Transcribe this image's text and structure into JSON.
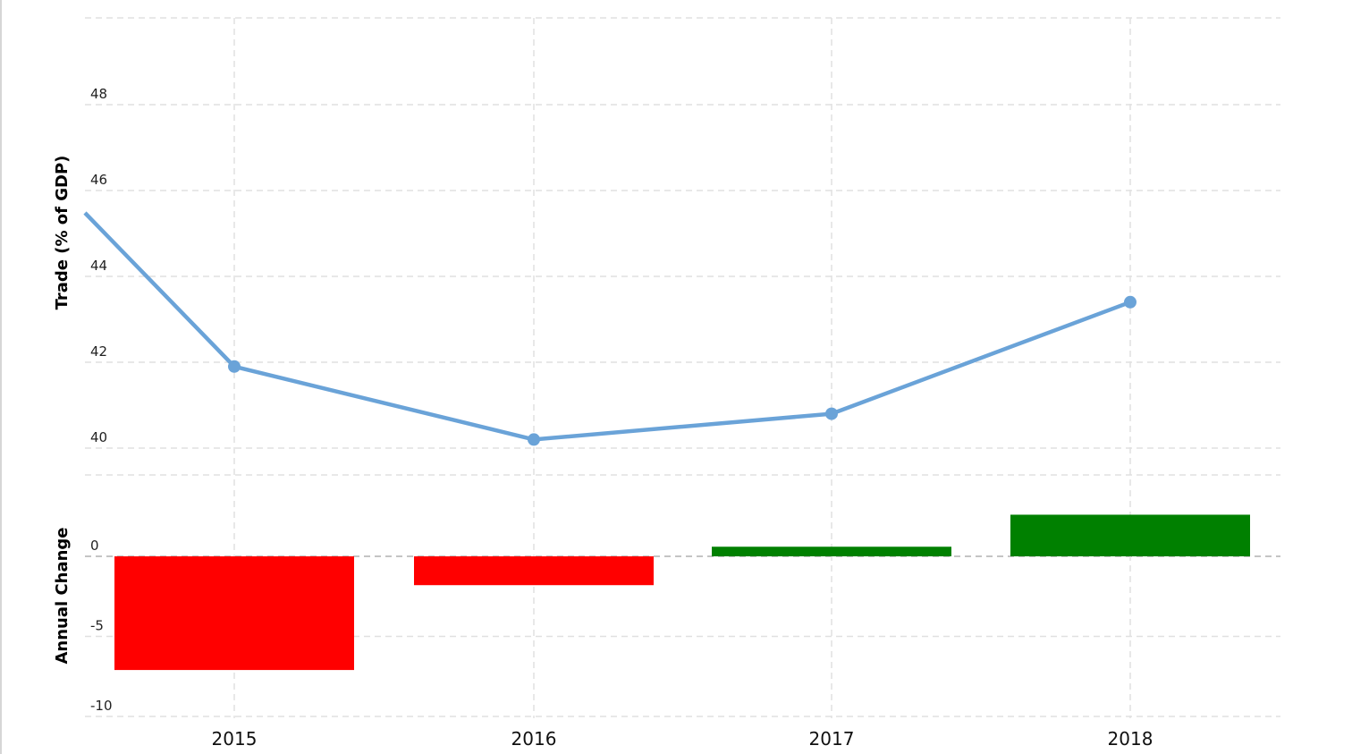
{
  "chart_data": [
    {
      "type": "line",
      "ylabel": "Trade (% of GDP)",
      "x": [
        "2015",
        "2016",
        "2017",
        "2018"
      ],
      "series": [
        {
          "values": [
            41.9,
            40.2,
            40.8,
            43.4
          ],
          "color": "#6aa3d8"
        }
      ],
      "ylim": [
        39.4,
        50
      ],
      "yticks": [
        40,
        42,
        44,
        46,
        48
      ],
      "grid": true
    },
    {
      "type": "bar",
      "ylabel": "Annual Change",
      "categories": [
        "2015",
        "2016",
        "2017",
        "2018"
      ],
      "values": [
        -7.1,
        -1.8,
        0.6,
        2.6
      ],
      "colors": {
        "negative": "#ff0000",
        "positive": "#008000"
      },
      "ylim": [
        -10,
        5
      ],
      "yticks": [
        -10,
        -5,
        0
      ],
      "grid": true
    }
  ]
}
